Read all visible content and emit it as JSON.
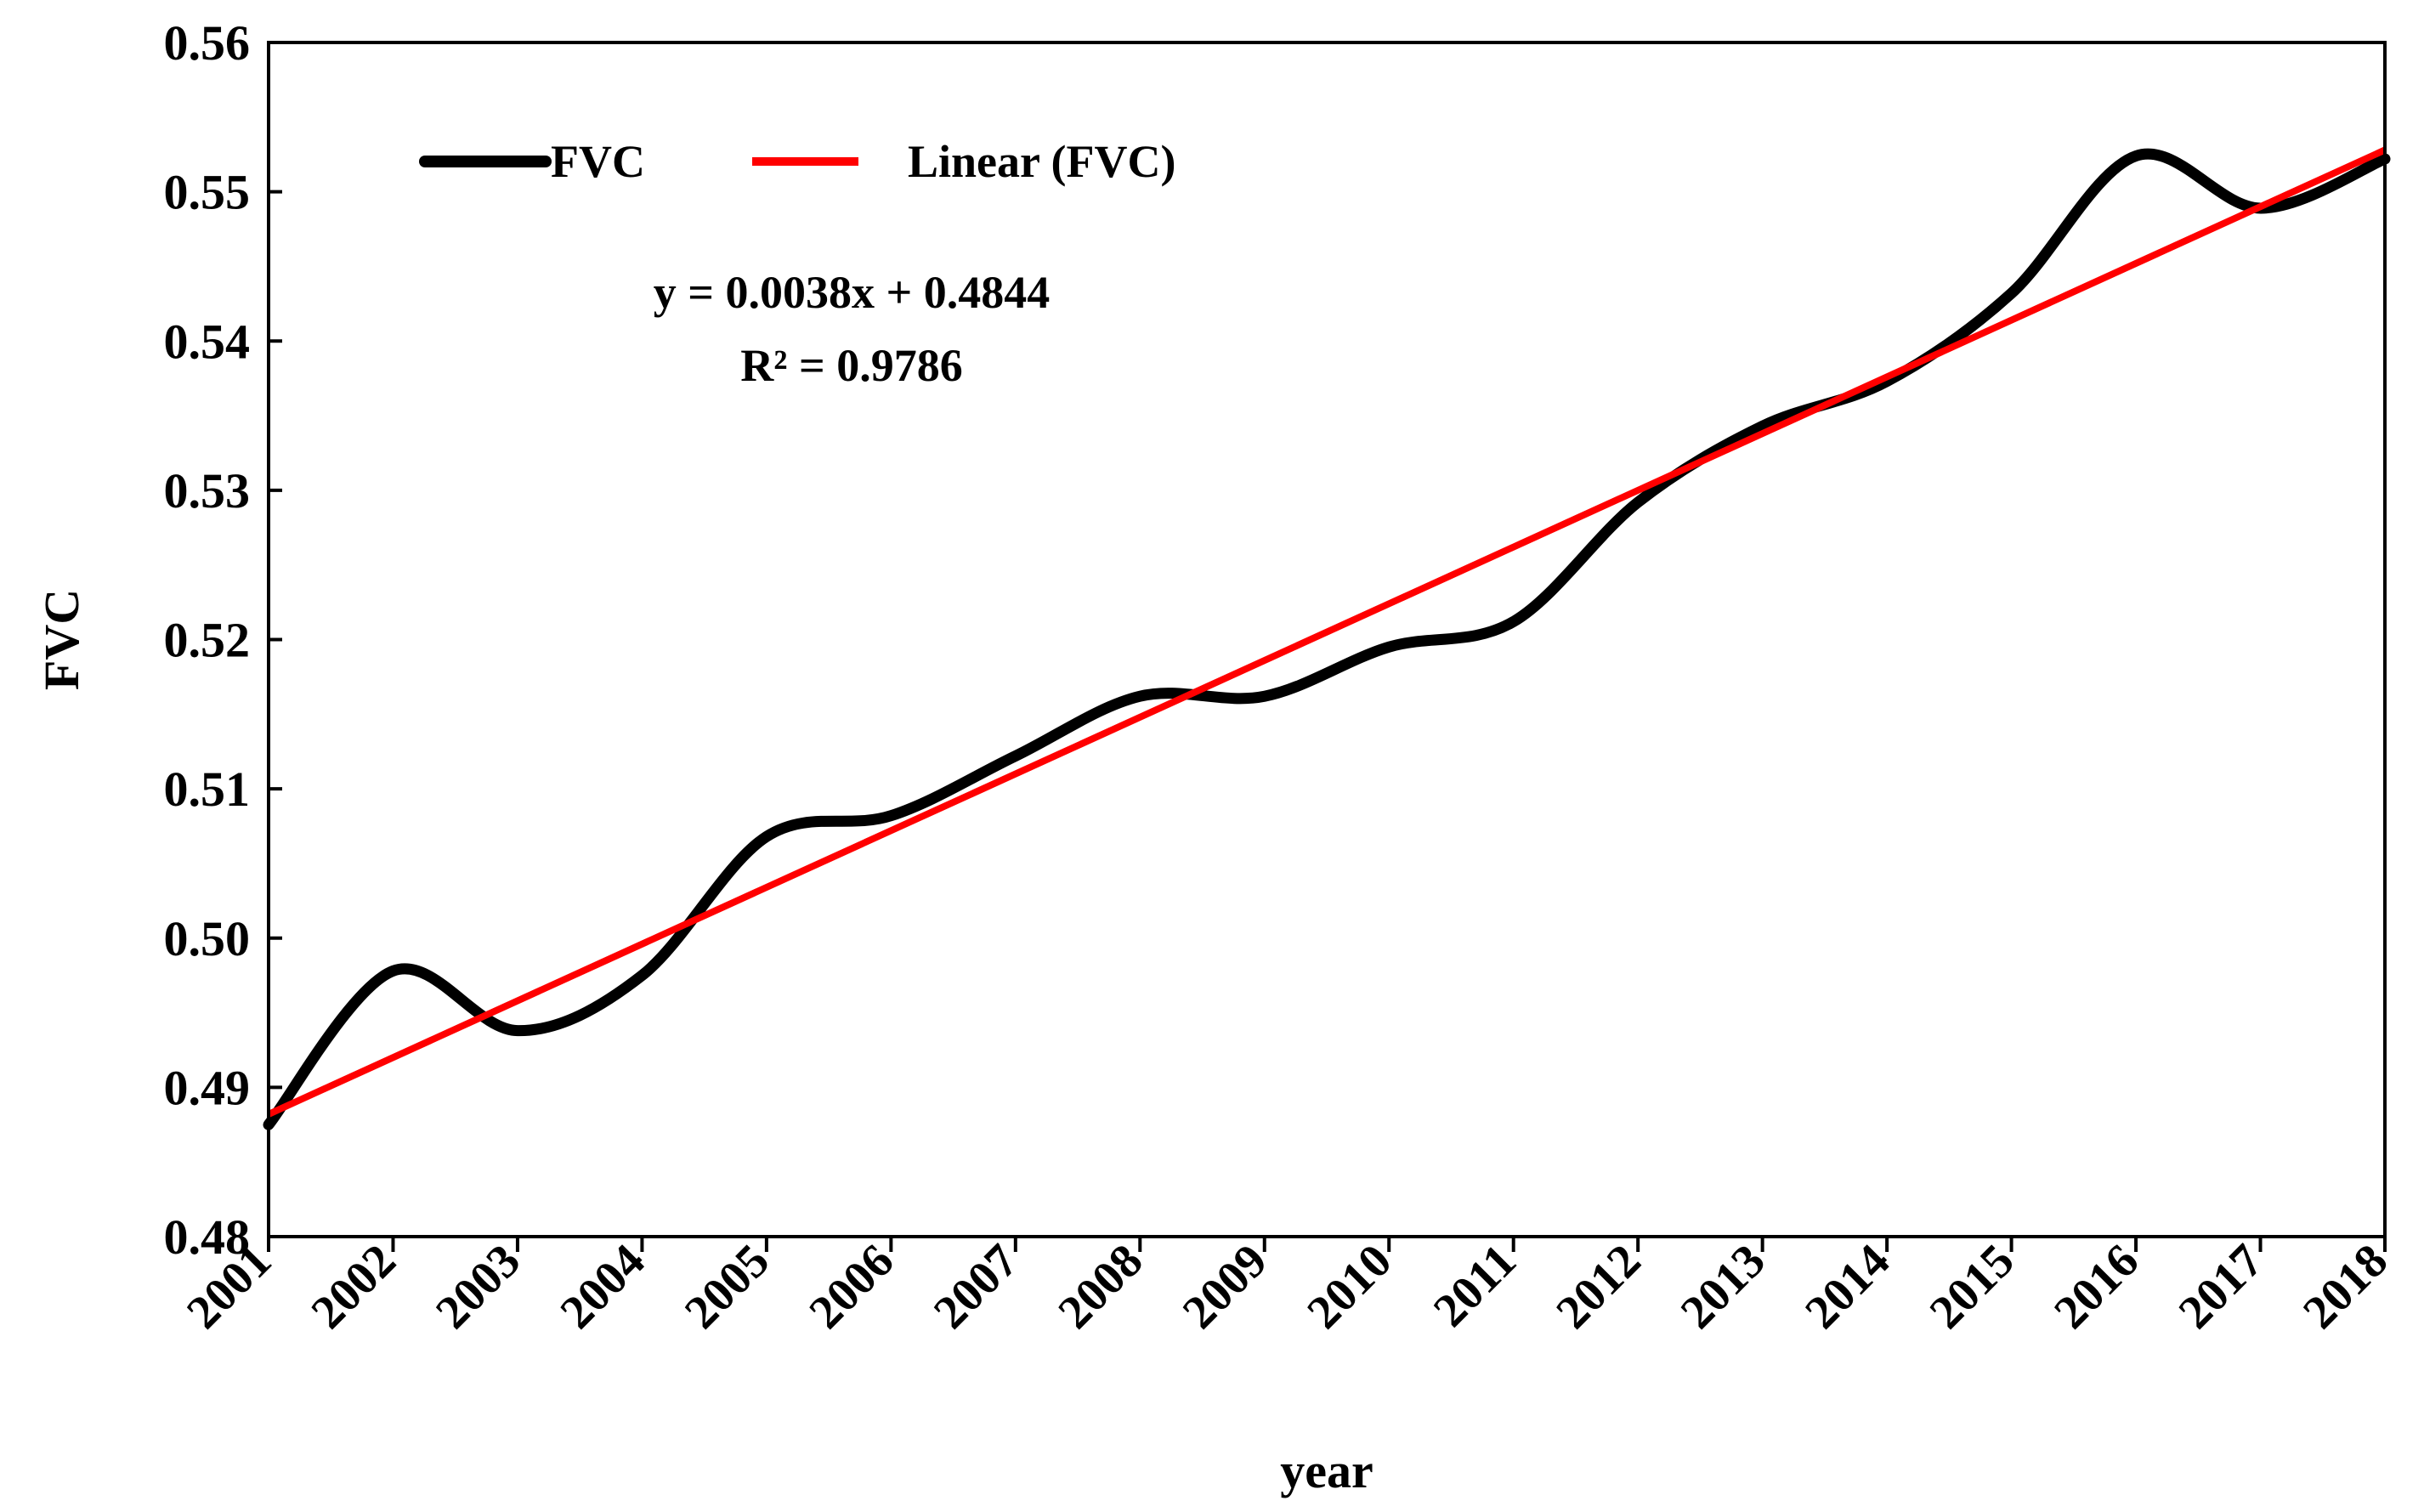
{
  "chart_data": {
    "type": "line",
    "xlabel": "year",
    "ylabel": "FVC",
    "ylim": [
      0.48,
      0.56
    ],
    "yticks": [
      "0.48",
      "0.49",
      "0.50",
      "0.51",
      "0.52",
      "0.53",
      "0.54",
      "0.55",
      "0.56"
    ],
    "categories": [
      "2001",
      "2002",
      "2003",
      "2004",
      "2005",
      "2006",
      "2007",
      "2008",
      "2009",
      "2010",
      "2011",
      "2012",
      "2013",
      "2014",
      "2015",
      "2016",
      "2017",
      "2018"
    ],
    "grid": false,
    "legend_position": "top-left",
    "series": [
      {
        "name": "FVC",
        "color": "#000000",
        "smooth": true,
        "values": [
          0.4875,
          0.4978,
          0.4938,
          0.4975,
          0.5068,
          0.5082,
          0.5122,
          0.5162,
          0.5162,
          0.5195,
          0.5212,
          0.5292,
          0.5343,
          0.5373,
          0.5432,
          0.5524,
          0.5489,
          0.5522
        ]
      },
      {
        "name": "Linear (FVC)",
        "color": "#ff0000",
        "trendline": true,
        "slope": 0.0038,
        "intercept": 0.4844
      }
    ],
    "annotations": {
      "equation": "y = 0.0038x + 0.4844",
      "r_squared": "R² = 0.9786"
    }
  }
}
